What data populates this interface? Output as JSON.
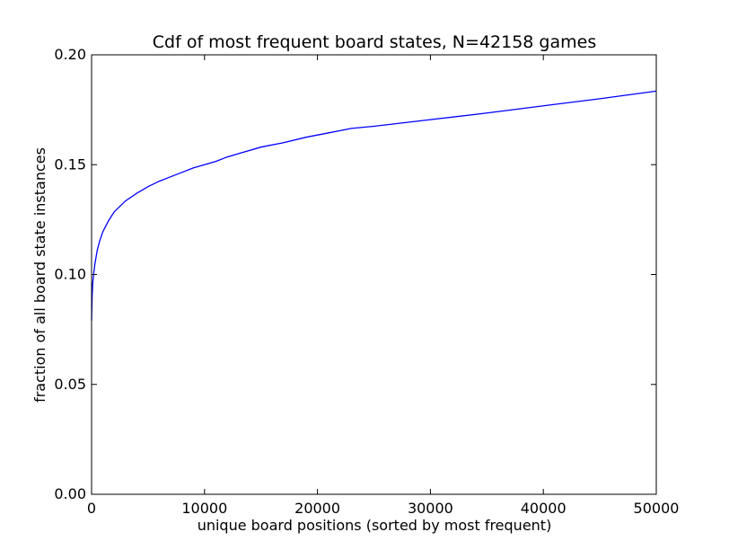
{
  "chart_data": {
    "type": "line",
    "title": "Cdf of most frequent board states, N=42158 games",
    "xlabel": "unique board positions (sorted by most frequent)",
    "ylabel": "fraction of all board state instances",
    "xlim": [
      0,
      50000
    ],
    "ylim": [
      0.0,
      0.2
    ],
    "grid": false,
    "x_ticks": [
      0,
      10000,
      20000,
      30000,
      40000,
      50000
    ],
    "x_tick_labels": [
      "0",
      "10000",
      "20000",
      "30000",
      "40000",
      "50000"
    ],
    "y_ticks": [
      0.0,
      0.05,
      0.1,
      0.15,
      0.2
    ],
    "y_tick_labels": [
      "0.00",
      "0.05",
      "0.10",
      "0.15",
      "0.20"
    ],
    "series": [
      {
        "color": "#0000ff",
        "x": [
          0,
          50,
          100,
          200,
          300,
          500,
          700,
          1000,
          1500,
          2000,
          2500,
          3000,
          4000,
          5000,
          6000,
          7000,
          8000,
          9000,
          10000,
          11000,
          12000,
          13000,
          15000,
          17000,
          19000,
          21000,
          23000,
          25000,
          30000,
          35000,
          40000,
          45000,
          50000
        ],
        "y": [
          0.079,
          0.09,
          0.096,
          0.101,
          0.105,
          0.111,
          0.115,
          0.1195,
          0.1245,
          0.1285,
          0.131,
          0.1335,
          0.137,
          0.14,
          0.1425,
          0.1445,
          0.1465,
          0.1485,
          0.15,
          0.1515,
          0.1535,
          0.155,
          0.158,
          0.16,
          0.1625,
          0.1645,
          0.1665,
          0.1675,
          0.1705,
          0.1735,
          0.1768,
          0.18,
          0.1835
        ]
      }
    ]
  }
}
